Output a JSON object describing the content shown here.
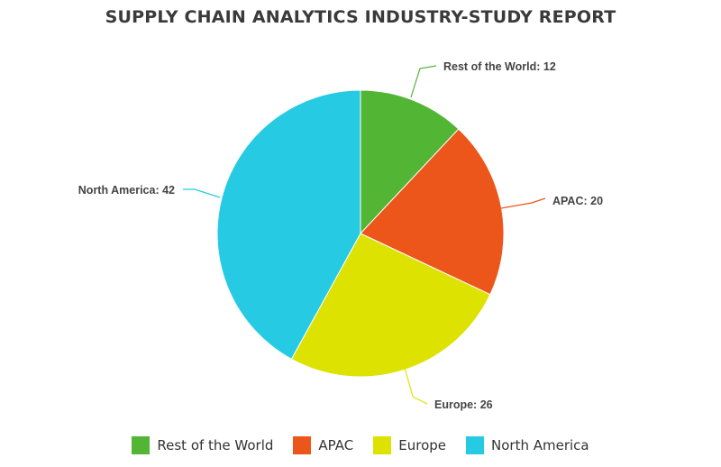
{
  "chart_data": {
    "type": "pie",
    "title": "SUPPLY CHAIN ANALYTICS INDUSTRY-STUDY REPORT",
    "legend_position": "bottom",
    "slices": [
      {
        "label": "Rest of the World",
        "value": 12,
        "color": "#52b534",
        "display": "Rest of the World: 12"
      },
      {
        "label": "APAC",
        "value": 20,
        "color": "#ec561b",
        "display": "APAC: 20"
      },
      {
        "label": "Europe",
        "value": 26,
        "color": "#dde200",
        "display": "Europe: 26"
      },
      {
        "label": "North America",
        "value": 42,
        "color": "#26cbe3",
        "display": "North America: 42"
      }
    ]
  }
}
